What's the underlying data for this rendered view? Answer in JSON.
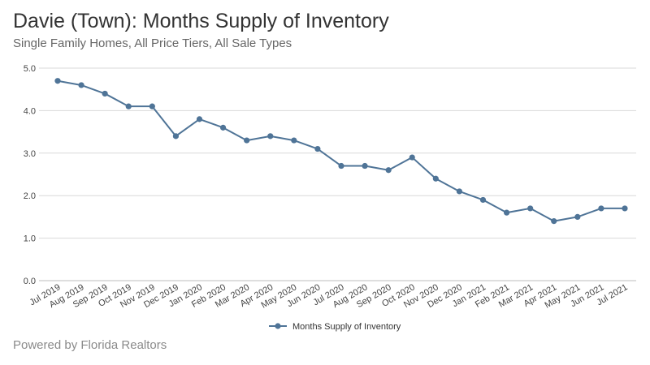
{
  "header": {
    "title": "Davie (Town): Months Supply of Inventory",
    "subtitle": "Single Family Homes, All Price Tiers, All Sale Types"
  },
  "footer": {
    "text": "Powered by Florida Realtors"
  },
  "chart_data": {
    "type": "line",
    "title": "Davie (Town): Months Supply of Inventory",
    "subtitle": "Single Family Homes, All Price Tiers, All Sale Types",
    "xlabel": "",
    "ylabel": "",
    "categories": [
      "Jul 2019",
      "Aug 2019",
      "Sep 2019",
      "Oct 2019",
      "Nov 2019",
      "Dec 2019",
      "Jan 2020",
      "Feb 2020",
      "Mar 2020",
      "Apr 2020",
      "May 2020",
      "Jun 2020",
      "Jul 2020",
      "Aug 2020",
      "Sep 2020",
      "Oct 2020",
      "Nov 2020",
      "Dec 2020",
      "Jan 2021",
      "Feb 2021",
      "Mar 2021",
      "Apr 2021",
      "May 2021",
      "Jun 2021",
      "Jul 2021"
    ],
    "series": [
      {
        "name": "Months Supply of Inventory",
        "values": [
          4.7,
          4.6,
          4.4,
          4.1,
          4.1,
          3.4,
          3.8,
          3.6,
          3.3,
          3.4,
          3.3,
          3.1,
          2.7,
          2.7,
          2.6,
          2.9,
          2.4,
          2.1,
          1.9,
          1.6,
          1.7,
          1.4,
          1.5,
          1.7,
          1.7
        ]
      }
    ],
    "yticks": [
      "0.0",
      "1.0",
      "2.0",
      "3.0",
      "4.0",
      "5.0"
    ],
    "ylim": [
      0,
      5
    ],
    "grid": true,
    "legend_position": "bottom-center",
    "colors": {
      "series": "#4f7497",
      "grid": "#d9d9d9",
      "axis_text": "#444444"
    }
  }
}
